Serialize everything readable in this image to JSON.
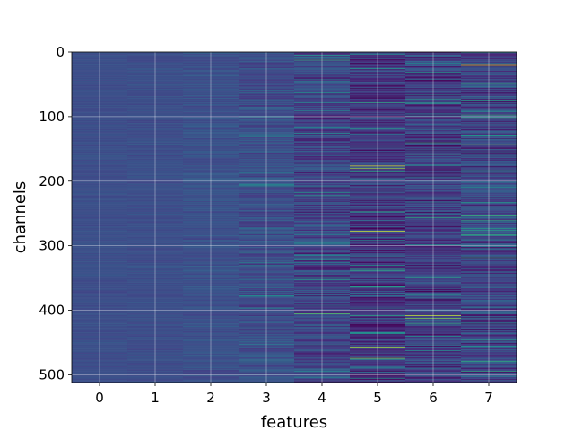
{
  "chart_data": {
    "type": "heatmap",
    "title": "",
    "xlabel": "features",
    "ylabel": "channels",
    "x_ticks": [
      "0",
      "1",
      "2",
      "3",
      "4",
      "5",
      "6",
      "7"
    ],
    "y_ticks": [
      0,
      100,
      200,
      300,
      400,
      500
    ],
    "y_tick_labels": [
      "0",
      "100",
      "200",
      "300",
      "400",
      "500"
    ],
    "x_range": [
      -0.5,
      7.5
    ],
    "y_range": [
      512,
      0
    ],
    "n_features": 8,
    "n_channels": 512,
    "grid": true,
    "colormap": "viridis",
    "column_spread": [
      0.05,
      0.06,
      0.09,
      0.16,
      0.2,
      0.24,
      0.24,
      0.24
    ],
    "column_base": [
      0.3,
      0.3,
      0.31,
      0.3,
      0.27,
      0.22,
      0.24,
      0.27
    ],
    "highlights": [
      {
        "feature": 7,
        "channel": 19,
        "value": 0.95
      },
      {
        "feature": 7,
        "channel": 48,
        "value": 0.7
      },
      {
        "feature": 7,
        "channel": 143,
        "value": 0.8
      },
      {
        "feature": 7,
        "channel": 260,
        "value": 0.7
      },
      {
        "feature": 7,
        "channel": 318,
        "value": 0.7
      },
      {
        "feature": 5,
        "channel": 176,
        "value": 0.95
      },
      {
        "feature": 5,
        "channel": 180,
        "value": 0.9
      },
      {
        "feature": 5,
        "channel": 247,
        "value": 0.7
      },
      {
        "feature": 5,
        "channel": 277,
        "value": 0.95
      },
      {
        "feature": 5,
        "channel": 338,
        "value": 0.7
      },
      {
        "feature": 5,
        "channel": 458,
        "value": 0.9
      },
      {
        "feature": 5,
        "channel": 474,
        "value": 0.85
      },
      {
        "feature": 6,
        "channel": 408,
        "value": 0.95
      },
      {
        "feature": 6,
        "channel": 412,
        "value": 0.85
      },
      {
        "feature": 6,
        "channel": 420,
        "value": 0.7
      },
      {
        "feature": 4,
        "channel": 12,
        "value": 0.75
      },
      {
        "feature": 4,
        "channel": 217,
        "value": 0.65
      },
      {
        "feature": 4,
        "channel": 405,
        "value": 0.8
      },
      {
        "feature": 3,
        "channel": 205,
        "value": 0.6
      },
      {
        "feature": 3,
        "channel": 100,
        "value": 0.55
      },
      {
        "feature": 4,
        "channel": 296,
        "value": 0.6
      }
    ]
  }
}
